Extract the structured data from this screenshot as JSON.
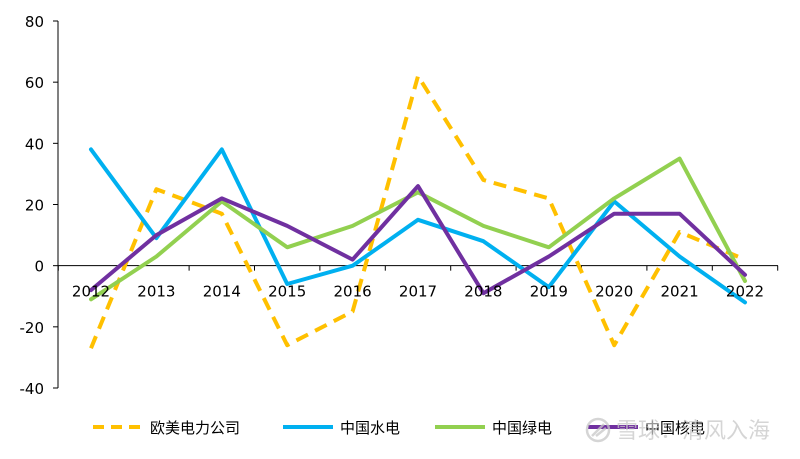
{
  "chart_data": {
    "type": "line",
    "categories": [
      "2012",
      "2013",
      "2014",
      "2015",
      "2016",
      "2017",
      "2018",
      "2019",
      "2020",
      "2021",
      "2022"
    ],
    "ylim": [
      -40,
      80
    ],
    "yticks": [
      -40,
      -20,
      0,
      20,
      40,
      60,
      80
    ],
    "grid": false,
    "legend_position": "bottom",
    "series": [
      {
        "name": "欧美电力公司",
        "color": "#FFC000",
        "dash": true,
        "values": [
          -27,
          25,
          17,
          -26,
          -15,
          62,
          28,
          22,
          -26,
          11,
          2
        ]
      },
      {
        "name": "中国水电",
        "color": "#00B0F0",
        "dash": false,
        "values": [
          38,
          9,
          38,
          -6,
          0,
          15,
          8,
          -7,
          21,
          3,
          -12
        ]
      },
      {
        "name": "中国绿电",
        "color": "#92D050",
        "dash": false,
        "values": [
          -11,
          3,
          21,
          6,
          13,
          24,
          13,
          6,
          22,
          35,
          -5
        ]
      },
      {
        "name": "中国核电",
        "color": "#7030A0",
        "dash": false,
        "values": [
          -8,
          10,
          22,
          13,
          2,
          26,
          -9,
          3,
          17,
          17,
          -3
        ]
      }
    ],
    "watermark": {
      "text": "雪球：清风入海",
      "icon": "snowball-logo-icon"
    }
  }
}
